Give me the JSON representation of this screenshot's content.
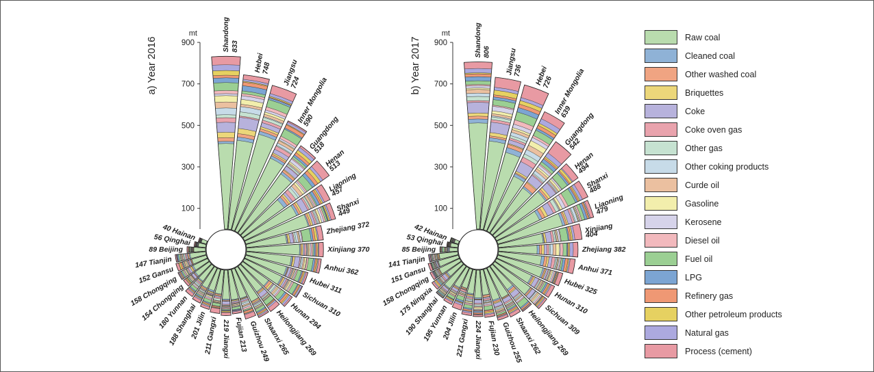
{
  "legend": [
    {
      "name": "Raw coal",
      "color": "#b9dcae"
    },
    {
      "name": "Cleaned coal",
      "color": "#8fb2d6"
    },
    {
      "name": "Other washed coal",
      "color": "#f0a482"
    },
    {
      "name": "Briquettes",
      "color": "#ecd77a"
    },
    {
      "name": "Coke",
      "color": "#b7b2dc"
    },
    {
      "name": "Coke oven gas",
      "color": "#e9a3ad"
    },
    {
      "name": "Other gas",
      "color": "#c6e2d1"
    },
    {
      "name": "Other coking products",
      "color": "#c7dbe8"
    },
    {
      "name": "Curde oil",
      "color": "#ebc0a0"
    },
    {
      "name": "Gasoline",
      "color": "#f2eeac"
    },
    {
      "name": "Kerosene",
      "color": "#d6d3ea"
    },
    {
      "name": "Diesel oil",
      "color": "#f2b9bd"
    },
    {
      "name": "Fuel oil",
      "color": "#9bcf93"
    },
    {
      "name": "LPG",
      "color": "#7ca5d3"
    },
    {
      "name": "Refinery gas",
      "color": "#ef9874"
    },
    {
      "name": "Other petroleum products",
      "color": "#e6d161"
    },
    {
      "name": "Natural gas",
      "color": "#aca9df"
    },
    {
      "name": "Process (cement)",
      "color": "#e89aa3"
    }
  ],
  "chart_data": [
    {
      "type": "bar",
      "subtype": "radial-stacked",
      "title": "a) Year 2016",
      "unit": "mt",
      "ylim": [
        0,
        900
      ],
      "ticks": [
        100,
        300,
        500,
        700,
        900
      ],
      "categories": [
        "Shandong",
        "Hebei",
        "Jiangsu",
        "Inner Mongolia",
        "Guangdong",
        "Henan",
        "Liaoning",
        "Shanxi",
        "Zhejiang",
        "Xinjiang",
        "Anhui",
        "Hubei",
        "Sichuan",
        "Hunan",
        "Heilongjiang",
        "Shaanxi",
        "Guizhou",
        "Fujian",
        "Jiangxi",
        "Gangxi",
        "Jilin",
        "Shanghai",
        "Yunnan",
        "Chongqing",
        "Chongqing",
        "Gansu",
        "Tianjin",
        "Beijing",
        "Qinghai",
        "Hainan"
      ],
      "labels": [
        "Shandong",
        "Hebei",
        "Jiangsu",
        "Inner Mongolia",
        "Guangdong",
        "Henan",
        "Liaoning",
        "Shanxi",
        "Zhejiang 372",
        "Xinjiang 370",
        "Anhui 362",
        "Hubei 311",
        "Sichuan 310",
        "Hunan 294",
        "Heilongjiang 269",
        "Shaanxi 265",
        "Guizhou 249",
        "Fujian 213",
        "219 Jiangxi",
        "211 Gangxi",
        "201 Jilin",
        "188 Shanghai",
        "180 Yunnan",
        "154 Chongqing",
        "158 Chongqing",
        "152 Gansu",
        "147 Tianjin",
        "89 Beijing",
        "56 Qinghai",
        "40 Hainan"
      ],
      "values": [
        833,
        748,
        724,
        590,
        518,
        513,
        457,
        449,
        372,
        370,
        362,
        311,
        310,
        294,
        269,
        265,
        249,
        213,
        219,
        211,
        201,
        188,
        180,
        154,
        158,
        152,
        147,
        89,
        56,
        40
      ]
    },
    {
      "type": "bar",
      "subtype": "radial-stacked",
      "title": "b) Year 2017",
      "unit": "mt",
      "ylim": [
        0,
        900
      ],
      "ticks": [
        100,
        300,
        500,
        700,
        900
      ],
      "categories": [
        "Shandong",
        "Jiangsu",
        "Hebei",
        "Inner Mongolia",
        "Guangdong",
        "Henan",
        "Shanxi",
        "Liaoning",
        "Xinjiang",
        "Zhejiang",
        "Anhui",
        "Hubei",
        "Hunan",
        "Sichuan",
        "Heilongjiang",
        "Shaanxi",
        "Guizhou",
        "Fujian",
        "Jiangxi",
        "Gangxi",
        "Jilin",
        "Yunnan",
        "Shanghai",
        "Ningxia",
        "Chongqing",
        "Gansu",
        "Tianjin",
        "Beijing",
        "Qinghai",
        "Hainan"
      ],
      "labels": [
        "Shandong",
        "Jiangsu",
        "Hebei",
        "Inner Mongolia",
        "Guangdong",
        "Henan",
        "Shanxi",
        "Liaoning",
        "Xinjiang",
        "Zhejiang 382",
        "Anhui 371",
        "Hubei 325",
        "Hunan 310",
        "Sichuan 309",
        "Heilongjiang 269",
        "Shaanxi 262",
        "Guizhou 255",
        "Fujian 230",
        "224 Jiangxi",
        "221 Gangxi",
        "204 Jilin",
        "195 Yunnan",
        "190 Shanghai",
        "175 Ningxia",
        "158 Chongqing",
        "151 Gansu",
        "141 Tianjin",
        "85 Beijing",
        "53 Qinghai",
        "42 Hainan"
      ],
      "values": [
        806,
        736,
        726,
        639,
        542,
        494,
        488,
        479,
        404,
        382,
        371,
        325,
        310,
        309,
        269,
        262,
        255,
        230,
        224,
        221,
        204,
        195,
        190,
        175,
        158,
        151,
        141,
        85,
        53,
        42
      ]
    }
  ]
}
